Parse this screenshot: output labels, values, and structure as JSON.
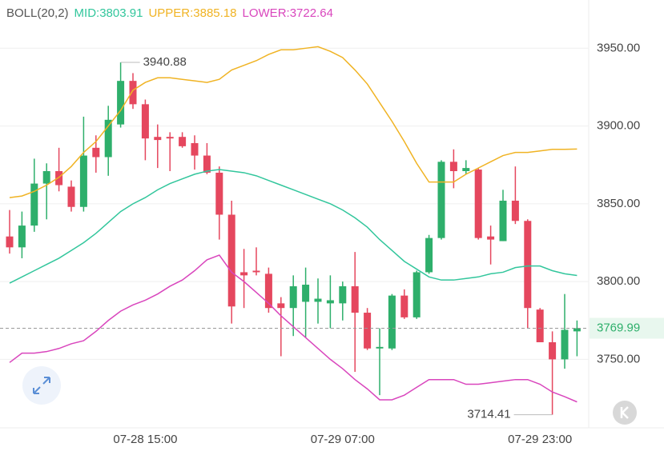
{
  "chart_data": {
    "type": "candlestick",
    "indicator": "BOLL(20,2)",
    "categories": [
      null,
      null,
      null,
      null,
      null,
      null,
      null,
      null,
      null,
      null,
      null,
      "07-28 15:00",
      null,
      null,
      null,
      null,
      null,
      null,
      null,
      null,
      null,
      null,
      null,
      null,
      null,
      null,
      null,
      "07-29 07:00",
      null,
      null,
      null,
      null,
      null,
      null,
      null,
      null,
      null,
      null,
      null,
      null,
      null,
      null,
      null,
      "07-29 23:00",
      null,
      null,
      null
    ],
    "open": [
      3829,
      3822,
      3836,
      3863,
      3871,
      3861,
      3848,
      3886,
      3880,
      3901,
      3929,
      3914,
      3893,
      3893,
      3893,
      3889,
      3881,
      3870,
      3843,
      3806,
      3807,
      3805,
      3786,
      3783,
      3787,
      3787,
      3786,
      3786,
      3797,
      3780,
      3757,
      3757,
      3791,
      3777,
      3806,
      3828,
      3877,
      3871,
      3872,
      3829,
      3826,
      3852,
      3839,
      3782,
      3761,
      3750,
      3768
    ],
    "high": [
      3846,
      3845,
      3879,
      3876,
      3886,
      3865,
      3906,
      3894,
      3913,
      3940.88,
      3934,
      3917,
      3901,
      3896,
      3896,
      3894,
      3889,
      3874,
      3852,
      3821,
      3822,
      3809,
      3790,
      3804,
      3809,
      3802,
      3804,
      3800,
      3819,
      3783,
      3770,
      3792,
      3795,
      3807,
      3830,
      3878,
      3885,
      3878,
      3873,
      3836,
      3859,
      3874,
      3840,
      3783,
      3768,
      3792,
      3775
    ],
    "low": [
      3818,
      3815,
      3832,
      3840,
      3858,
      3845,
      3845,
      3870,
      3868,
      3899,
      3911,
      3878,
      3873,
      3871,
      3886,
      3872,
      3869,
      3827,
      3773,
      3783,
      3804,
      3780,
      3752,
      3765,
      3764,
      3773,
      3770,
      3775,
      3742,
      3756,
      3727,
      3756,
      3776,
      3776,
      3805,
      3827,
      3860,
      3869,
      3827,
      3811,
      3826,
      3837,
      3770,
      3761,
      3714.41,
      3744,
      3752
    ],
    "close": [
      3822,
      3836,
      3863,
      3871,
      3862,
      3848,
      3881,
      3880,
      3904,
      3929,
      3914,
      3892,
      3891,
      3892,
      3887,
      3881,
      3870,
      3843,
      3784,
      3804,
      3806,
      3783,
      3783,
      3797,
      3798,
      3789,
      3788,
      3797,
      3780,
      3757,
      3758,
      3791,
      3777,
      3806,
      3828,
      3877,
      3871,
      3873,
      3828,
      3827,
      3852,
      3839,
      3783,
      3761,
      3750,
      3769,
      3769.99
    ],
    "up_color": "#2eaf6b",
    "down_color": "#e5475e",
    "series": [
      {
        "name": "MID:3803.91",
        "color": "#32c69c",
        "values": [
          3799,
          3803,
          3807,
          3811,
          3815,
          3820,
          3825,
          3831,
          3838,
          3845,
          3850,
          3854,
          3859,
          3863,
          3866,
          3869,
          3871,
          3872,
          3871,
          3870,
          3868,
          3865,
          3862,
          3859,
          3856,
          3853,
          3850,
          3846,
          3841,
          3835,
          3827,
          3820,
          3813,
          3808,
          3803,
          3801,
          3801,
          3802,
          3803,
          3805,
          3806,
          3809,
          3810,
          3810,
          3807,
          3805,
          3803.91
        ]
      },
      {
        "name": "UPPER:3885.18",
        "color": "#f0b323",
        "values": [
          3854,
          3855,
          3858,
          3862,
          3867,
          3874,
          3883,
          3890,
          3900,
          3910,
          3923,
          3928,
          3931,
          3931,
          3930,
          3929,
          3928,
          3930,
          3936,
          3939,
          3942,
          3946,
          3949,
          3949,
          3950,
          3951,
          3948,
          3944,
          3936,
          3927,
          3915,
          3903,
          3890,
          3876,
          3864,
          3864,
          3864,
          3869,
          3873,
          3877,
          3881,
          3883,
          3883,
          3884,
          3885,
          3885,
          3885.18
        ]
      },
      {
        "name": "LOWER:3722.64",
        "color": "#d946bd",
        "values": [
          3748,
          3754,
          3754,
          3755,
          3757,
          3760,
          3762,
          3768,
          3775,
          3781,
          3785,
          3788,
          3792,
          3797,
          3801,
          3807,
          3814,
          3817,
          3806,
          3800,
          3793,
          3786,
          3778,
          3771,
          3764,
          3757,
          3750,
          3744,
          3737,
          3731,
          3724,
          3724,
          3727,
          3732,
          3737,
          3737,
          3737,
          3734,
          3734,
          3735,
          3736,
          3737,
          3737,
          3734,
          3729,
          3726,
          3722.64
        ]
      }
    ],
    "ylim": [
      3706,
      3981
    ],
    "yticks": [
      {
        "value": 3750,
        "label": "3750.00"
      },
      {
        "value": 3800,
        "label": "3800.00"
      },
      {
        "value": 3850,
        "label": "3850.00"
      },
      {
        "value": 3900,
        "label": "3900.00"
      },
      {
        "value": 3950,
        "label": "3950.00"
      }
    ],
    "grid": true
  }
}
